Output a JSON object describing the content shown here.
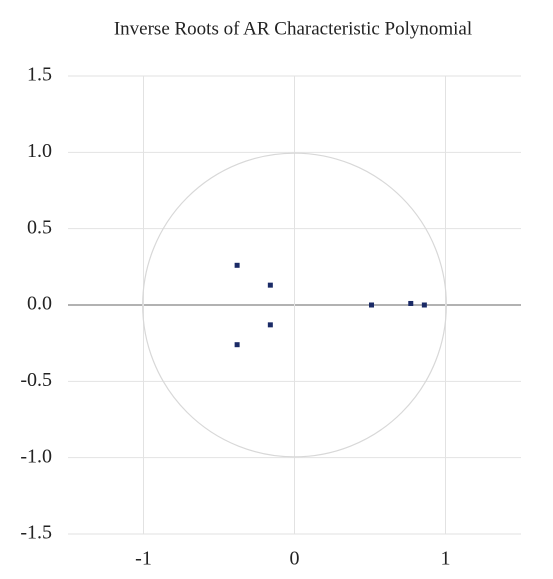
{
  "chart_data": {
    "type": "scatter",
    "title": "Inverse Roots of AR Characteristic Polynomial",
    "x": [
      -0.38,
      -0.38,
      -0.16,
      -0.16,
      0.51,
      0.77,
      0.86
    ],
    "values": [
      0.26,
      -0.26,
      0.13,
      -0.13,
      0,
      0.01,
      0
    ],
    "color": "#1a2a66",
    "xlim": [
      -1.5,
      1.5
    ],
    "xticks": [
      -1,
      0,
      1
    ],
    "ylim": [
      -1.5,
      1.5
    ],
    "yticks": [
      {
        "value": -1.5,
        "label": "-1.5"
      },
      {
        "value": -1,
        "label": "-1.0"
      },
      {
        "value": -0.5,
        "label": "-0.5"
      },
      {
        "value": 0,
        "label": "0.0"
      },
      {
        "value": 0.5,
        "label": "0.5"
      },
      {
        "value": 1,
        "label": "1.0"
      },
      {
        "value": 1.5,
        "label": "1.5"
      }
    ],
    "grid": true,
    "unit_circle": true
  }
}
